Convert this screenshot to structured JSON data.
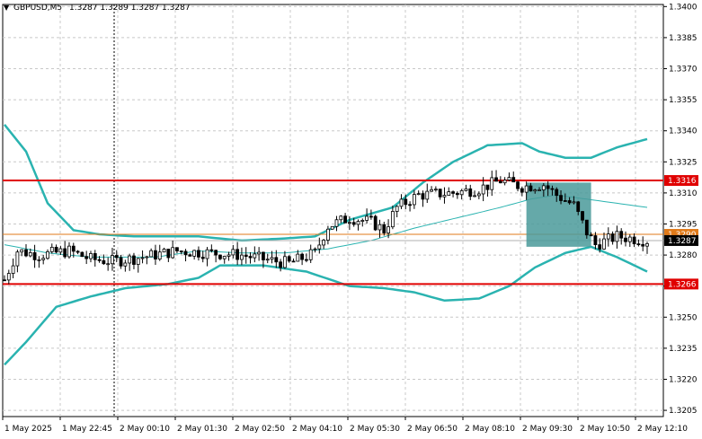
{
  "header": {
    "symbol_timeframe": "GBPUSD,M5",
    "ohlc": "1.3287 1.3289 1.3287 1.3287"
  },
  "colors": {
    "grid": "#c8c8c8",
    "bollinger": "#2ab3b0",
    "ma": "#2ab3b0",
    "level_line": "#e00000",
    "orange_line": "#e07a1a",
    "box": "#4a9a9a",
    "candle": "#000000"
  },
  "chart_data": {
    "type": "candlestick",
    "ylim": [
      1.3202,
      1.3401
    ],
    "ytick_labels": [
      "1.3400",
      "1.3385",
      "1.3370",
      "1.3355",
      "1.3340",
      "1.3325",
      "1.3310",
      "1.3295",
      "1.3280",
      "1.3265",
      "1.3250",
      "1.3235",
      "1.3220",
      "1.3205"
    ],
    "ytick_values": [
      1.34,
      1.3385,
      1.337,
      1.3355,
      1.334,
      1.3325,
      1.331,
      1.3295,
      1.328,
      1.3265,
      1.325,
      1.3235,
      1.322,
      1.3205
    ],
    "xtick_labels": [
      "1 May 2025",
      "1 May 22:45",
      "2 May 00:10",
      "2 May 01:30",
      "2 May 02:50",
      "2 May 04:10",
      "2 May 05:30",
      "2 May 06:50",
      "2 May 08:10",
      "2 May 09:30",
      "2 May 10:50",
      "2 May 12:10"
    ],
    "bar_count": 150,
    "levels": [
      {
        "value": 1.3316,
        "label": "1.3316"
      },
      {
        "value": 1.3266,
        "label": "1.3266"
      }
    ],
    "orange_level": {
      "value": 1.329,
      "label": "1.3290"
    },
    "current_price": {
      "value": 1.3287,
      "label": "1.3287"
    },
    "highlight_box": {
      "x_start": 121,
      "x_end": 136,
      "y_top": 1.3315,
      "y_bottom": 1.3284
    },
    "price_path": [
      [
        0,
        1.3268
      ],
      [
        3,
        1.3282
      ],
      [
        8,
        1.328
      ],
      [
        15,
        1.3282
      ],
      [
        20,
        1.3278
      ],
      [
        25,
        1.3277
      ],
      [
        32,
        1.3279
      ],
      [
        40,
        1.3282
      ],
      [
        48,
        1.3281
      ],
      [
        55,
        1.328
      ],
      [
        60,
        1.3278
      ],
      [
        66,
        1.3276
      ],
      [
        72,
        1.3281
      ],
      [
        75,
        1.3294
      ],
      [
        80,
        1.3298
      ],
      [
        85,
        1.3296
      ],
      [
        88,
        1.3292
      ],
      [
        91,
        1.3303
      ],
      [
        96,
        1.3309
      ],
      [
        104,
        1.331
      ],
      [
        110,
        1.3312
      ],
      [
        115,
        1.3316
      ],
      [
        120,
        1.3313
      ],
      [
        125,
        1.3314
      ],
      [
        128,
        1.3309
      ],
      [
        132,
        1.3304
      ],
      [
        135,
        1.3291
      ],
      [
        137,
        1.3285
      ],
      [
        142,
        1.3289
      ],
      [
        149,
        1.3287
      ]
    ],
    "bb_upper": [
      [
        0,
        1.3343
      ],
      [
        5,
        1.333
      ],
      [
        10,
        1.3305
      ],
      [
        16,
        1.3292
      ],
      [
        22,
        1.329
      ],
      [
        30,
        1.3289
      ],
      [
        45,
        1.3289
      ],
      [
        55,
        1.3287
      ],
      [
        65,
        1.3288
      ],
      [
        72,
        1.3289
      ],
      [
        80,
        1.3297
      ],
      [
        90,
        1.3303
      ],
      [
        97,
        1.3315
      ],
      [
        104,
        1.3325
      ],
      [
        112,
        1.3333
      ],
      [
        120,
        1.3334
      ],
      [
        124,
        1.333
      ],
      [
        130,
        1.3327
      ],
      [
        136,
        1.3327
      ],
      [
        142,
        1.3332
      ],
      [
        149,
        1.3336
      ]
    ],
    "bb_middle": [
      [
        0,
        1.3285
      ],
      [
        10,
        1.3281
      ],
      [
        20,
        1.3279
      ],
      [
        35,
        1.3279
      ],
      [
        45,
        1.3282
      ],
      [
        55,
        1.3281
      ],
      [
        65,
        1.3281
      ],
      [
        75,
        1.3283
      ],
      [
        85,
        1.3287
      ],
      [
        95,
        1.3293
      ],
      [
        105,
        1.3298
      ],
      [
        115,
        1.3303
      ],
      [
        122,
        1.3307
      ],
      [
        128,
        1.3309
      ],
      [
        135,
        1.3307
      ],
      [
        142,
        1.3305
      ],
      [
        149,
        1.3303
      ]
    ],
    "bb_lower": [
      [
        0,
        1.3227
      ],
      [
        5,
        1.3238
      ],
      [
        12,
        1.3255
      ],
      [
        20,
        1.326
      ],
      [
        28,
        1.3264
      ],
      [
        38,
        1.3266
      ],
      [
        45,
        1.3269
      ],
      [
        50,
        1.3275
      ],
      [
        60,
        1.3275
      ],
      [
        70,
        1.3272
      ],
      [
        80,
        1.3265
      ],
      [
        88,
        1.3264
      ],
      [
        95,
        1.3262
      ],
      [
        102,
        1.3258
      ],
      [
        110,
        1.3259
      ],
      [
        117,
        1.3265
      ],
      [
        123,
        1.3274
      ],
      [
        130,
        1.3281
      ],
      [
        136,
        1.3284
      ],
      [
        142,
        1.3279
      ],
      [
        149,
        1.3272
      ]
    ]
  }
}
